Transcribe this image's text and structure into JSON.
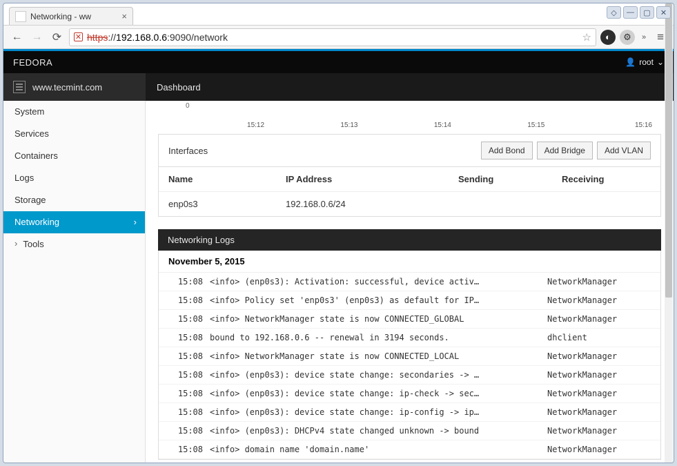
{
  "window": {
    "tab_title": "Networking - ww",
    "url_protocol": "https",
    "url_rest": "://",
    "url_host": "192.168.0.6",
    "url_path": ":9090/network"
  },
  "topbar": {
    "brand": "FEDORA",
    "user": "root"
  },
  "host": {
    "name": "www.tecmint.com"
  },
  "dashboard_label": "Dashboard",
  "sidebar": {
    "items": [
      {
        "label": "System",
        "active": false
      },
      {
        "label": "Services",
        "active": false
      },
      {
        "label": "Containers",
        "active": false
      },
      {
        "label": "Logs",
        "active": false
      },
      {
        "label": "Storage",
        "active": false
      },
      {
        "label": "Networking",
        "active": true
      },
      {
        "label": "Tools",
        "active": false,
        "tools": true
      }
    ]
  },
  "chart": {
    "zero": "0",
    "ticks": [
      "15:12",
      "15:13",
      "15:14",
      "15:15",
      "15:16"
    ],
    "tick_positions_pct": [
      15,
      35,
      55,
      75,
      98
    ]
  },
  "interfaces": {
    "title": "Interfaces",
    "buttons": [
      "Add Bond",
      "Add Bridge",
      "Add VLAN"
    ],
    "columns": [
      "Name",
      "IP Address",
      "Sending",
      "Receiving"
    ],
    "rows": [
      {
        "name": "enp0s3",
        "ip": "192.168.0.6/24",
        "sending": "",
        "receiving": ""
      }
    ]
  },
  "logs": {
    "title": "Networking Logs",
    "date": "November 5, 2015",
    "entries": [
      {
        "time": "15:08",
        "msg": "<info> (enp0s3): Activation: successful, device activ…",
        "src": "NetworkManager"
      },
      {
        "time": "15:08",
        "msg": "<info> Policy set 'enp0s3' (enp0s3) as default for IP…",
        "src": "NetworkManager"
      },
      {
        "time": "15:08",
        "msg": "<info> NetworkManager state is now CONNECTED_GLOBAL",
        "src": "NetworkManager"
      },
      {
        "time": "15:08",
        "msg": "bound to 192.168.0.6 -- renewal in 3194 seconds.",
        "src": "dhclient"
      },
      {
        "time": "15:08",
        "msg": "<info> NetworkManager state is now CONNECTED_LOCAL",
        "src": "NetworkManager"
      },
      {
        "time": "15:08",
        "msg": "<info> (enp0s3): device state change: secondaries -> …",
        "src": "NetworkManager"
      },
      {
        "time": "15:08",
        "msg": "<info> (enp0s3): device state change: ip-check -> sec…",
        "src": "NetworkManager"
      },
      {
        "time": "15:08",
        "msg": "<info> (enp0s3): device state change: ip-config -> ip…",
        "src": "NetworkManager"
      },
      {
        "time": "15:08",
        "msg": "<info> (enp0s3): DHCPv4 state changed unknown -> bound",
        "src": "NetworkManager"
      },
      {
        "time": "15:08",
        "msg": "<info> domain name 'domain.name'",
        "src": "NetworkManager"
      }
    ]
  },
  "colors": {
    "accent": "#0099cc",
    "thinbar": "#0088cc",
    "topbar_bg": "#0a0a0a",
    "row2_host": "#2b2b2b",
    "row2_dash": "#1a1a1a",
    "log_hdr": "#252525",
    "danger": "#c0392b"
  }
}
